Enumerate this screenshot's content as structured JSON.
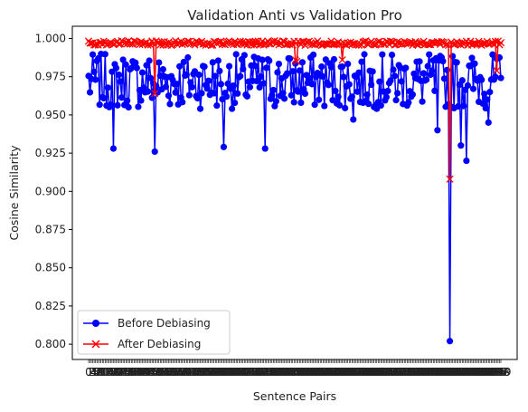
{
  "chart_data": {
    "type": "line",
    "title": "Validation Anti vs Validation Pro",
    "xlabel": "Sentence Pairs",
    "ylabel": "Cosine Similarity",
    "ylim": [
      0.79,
      1.008
    ],
    "yticks": [
      "0.800",
      "0.825",
      "0.850",
      "0.875",
      "0.900",
      "0.925",
      "0.950",
      "0.975",
      "1.000"
    ],
    "grid": false,
    "legend_position": "lower-left",
    "n_points": 300,
    "series": [
      {
        "name": "Before Debiasing",
        "color": "#0000ff",
        "marker": "circle",
        "baseline": 0.972,
        "spread": 0.018,
        "outliers": [
          {
            "x": 18,
            "y": 0.928
          },
          {
            "x": 48,
            "y": 0.926
          },
          {
            "x": 98,
            "y": 0.929
          },
          {
            "x": 128,
            "y": 0.928
          },
          {
            "x": 192,
            "y": 0.947
          },
          {
            "x": 253,
            "y": 0.94
          },
          {
            "x": 262,
            "y": 0.802
          },
          {
            "x": 270,
            "y": 0.93
          },
          {
            "x": 274,
            "y": 0.92
          },
          {
            "x": 290,
            "y": 0.945
          }
        ]
      },
      {
        "name": "After Debiasing",
        "color": "#ff0000",
        "marker": "x",
        "baseline": 0.997,
        "spread": 0.0015,
        "outliers": [
          {
            "x": 48,
            "y": 0.964
          },
          {
            "x": 150,
            "y": 0.986
          },
          {
            "x": 151,
            "y": 0.985
          },
          {
            "x": 184,
            "y": 0.986
          },
          {
            "x": 262,
            "y": 0.908
          },
          {
            "x": 296,
            "y": 0.979
          }
        ]
      }
    ]
  }
}
